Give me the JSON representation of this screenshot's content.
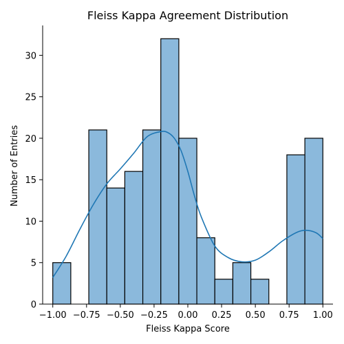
{
  "chart_data": {
    "type": "bar",
    "subtype": "histogram",
    "title": "Fleiss Kappa Agreement Distribution",
    "xlabel": "Fleiss Kappa Score",
    "ylabel": "Number of Entries",
    "xlim": [
      -1.075,
      1.075
    ],
    "ylim": [
      0,
      33.6
    ],
    "bin_range": [
      -1.0,
      1.0
    ],
    "bin_count": 15,
    "values": [
      5,
      0,
      21,
      14,
      16,
      21,
      32,
      20,
      8,
      3,
      5,
      3,
      0,
      18,
      20
    ],
    "xticks": [
      "−1.00",
      "−0.75",
      "−0.50",
      "−0.25",
      "0.00",
      "0.25",
      "0.50",
      "0.75",
      "1.00"
    ],
    "xtick_values": [
      -1.0,
      -0.75,
      -0.5,
      -0.25,
      0.0,
      0.25,
      0.5,
      0.75,
      1.0
    ],
    "yticks": [
      "0",
      "5",
      "10",
      "15",
      "20",
      "25",
      "30"
    ],
    "ytick_values": [
      0,
      5,
      10,
      15,
      20,
      25,
      30
    ],
    "kde_curve": {
      "x": [
        -1.0,
        -0.9,
        -0.8,
        -0.7,
        -0.6,
        -0.5,
        -0.4,
        -0.3,
        -0.2,
        -0.15,
        -0.1,
        -0.05,
        0.0,
        0.05,
        0.1,
        0.2,
        0.3,
        0.4,
        0.5,
        0.6,
        0.7,
        0.8,
        0.87,
        0.95,
        1.0
      ],
      "y": [
        3.2,
        5.8,
        9.0,
        12.0,
        14.5,
        16.3,
        18.2,
        20.2,
        20.8,
        20.7,
        20.0,
        18.5,
        16.0,
        13.0,
        10.5,
        7.0,
        5.6,
        5.1,
        5.3,
        6.3,
        7.6,
        8.6,
        8.9,
        8.6,
        7.9
      ]
    },
    "colors": {
      "bar_fill": "#8bb9dc",
      "bar_edge": "#000000",
      "kde_line": "#1f77b4"
    },
    "grid": false,
    "legend": "none"
  }
}
